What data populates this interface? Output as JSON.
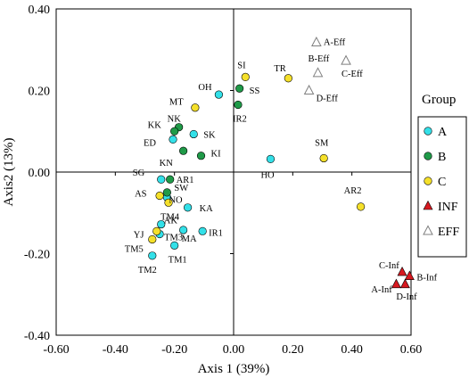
{
  "chart_data": {
    "type": "scatter",
    "xlabel": "Axis 1 (39%)",
    "ylabel": "Axis2 (13%)",
    "xlim": [
      -0.6,
      0.6
    ],
    "ylim": [
      -0.4,
      0.4
    ],
    "xticks": [
      -0.6,
      -0.4,
      -0.2,
      0.0,
      0.2,
      0.4,
      0.6
    ],
    "yticks": [
      -0.4,
      -0.2,
      0.0,
      0.2,
      0.4
    ],
    "xtick_labels": [
      "-0.60",
      "-0.40",
      "-0.20",
      "0.00",
      "0.20",
      "0.40",
      "0.60"
    ],
    "ytick_labels": [
      "-0.40",
      "-0.20",
      "0.00",
      "0.20",
      "0.40"
    ],
    "grid": false,
    "legend": {
      "title": "Group",
      "position": "right",
      "entries": [
        {
          "label": "A",
          "marker": "circle",
          "color": "#33e0e8"
        },
        {
          "label": "B",
          "marker": "circle",
          "color": "#1f9a48"
        },
        {
          "label": "C",
          "marker": "circle",
          "color": "#f5e02a"
        },
        {
          "label": "INF",
          "marker": "triangle-filled",
          "color": "#d71920"
        },
        {
          "label": "EFF",
          "marker": "triangle-open",
          "color": "#7f7f7f"
        }
      ]
    },
    "series": [
      {
        "group": "A",
        "marker": "circle",
        "color": "#33e0e8",
        "points": [
          {
            "label": "OH",
            "x": -0.05,
            "y": 0.19
          },
          {
            "label": "SK",
            "x": -0.135,
            "y": 0.093
          },
          {
            "label": "ED",
            "x": -0.205,
            "y": 0.08
          },
          {
            "label": "HO",
            "x": 0.125,
            "y": 0.032
          },
          {
            "label": "SG",
            "x": -0.245,
            "y": -0.018
          },
          {
            "label": "NO",
            "x": -0.225,
            "y": -0.062
          },
          {
            "label": "KA",
            "x": -0.155,
            "y": -0.087
          },
          {
            "label": "AK",
            "x": -0.245,
            "y": -0.128
          },
          {
            "label": "MA",
            "x": -0.17,
            "y": -0.142
          },
          {
            "label": "IR1",
            "x": -0.105,
            "y": -0.145
          },
          {
            "label": "TM3",
            "x": -0.25,
            "y": -0.152
          },
          {
            "label": "TM1",
            "x": -0.2,
            "y": -0.18
          },
          {
            "label": "TM2",
            "x": -0.275,
            "y": -0.205
          }
        ]
      },
      {
        "group": "B",
        "marker": "circle",
        "color": "#1f9a48",
        "points": [
          {
            "label": "SS",
            "x": 0.02,
            "y": 0.205
          },
          {
            "label": "IR2",
            "x": 0.015,
            "y": 0.165
          },
          {
            "label": "NK",
            "x": -0.185,
            "y": 0.11
          },
          {
            "label": "KK",
            "x": -0.2,
            "y": 0.1
          },
          {
            "label": "KN",
            "x": -0.17,
            "y": 0.052
          },
          {
            "label": "KI",
            "x": -0.11,
            "y": 0.04
          },
          {
            "label": "AR1",
            "x": -0.215,
            "y": -0.018
          },
          {
            "label": "SW",
            "x": -0.225,
            "y": -0.05
          }
        ]
      },
      {
        "group": "C",
        "marker": "circle",
        "color": "#f5e02a",
        "points": [
          {
            "label": "SI",
            "x": 0.04,
            "y": 0.233
          },
          {
            "label": "TR",
            "x": 0.185,
            "y": 0.23
          },
          {
            "label": "MT",
            "x": -0.13,
            "y": 0.158
          },
          {
            "label": "SM",
            "x": 0.305,
            "y": 0.034
          },
          {
            "label": "AR2",
            "x": 0.43,
            "y": -0.085
          },
          {
            "label": "AS",
            "x": -0.25,
            "y": -0.058
          },
          {
            "label": "TM4",
            "x": -0.22,
            "y": -0.075
          },
          {
            "label": "YJ",
            "x": -0.26,
            "y": -0.145
          },
          {
            "label": "TM5",
            "x": -0.275,
            "y": -0.165
          }
        ]
      },
      {
        "group": "INF",
        "marker": "triangle-filled",
        "color": "#d71920",
        "points": [
          {
            "label": "C-Inf",
            "x": 0.57,
            "y": -0.245
          },
          {
            "label": "B-Inf",
            "x": 0.595,
            "y": -0.255
          },
          {
            "label": "A-Inf",
            "x": 0.55,
            "y": -0.275
          },
          {
            "label": "D-Inf",
            "x": 0.58,
            "y": -0.275
          }
        ]
      },
      {
        "group": "EFF",
        "marker": "triangle-open",
        "color": "#7f7f7f",
        "points": [
          {
            "label": "A-Eff",
            "x": 0.28,
            "y": 0.318
          },
          {
            "label": "B-Eff",
            "x": 0.285,
            "y": 0.243
          },
          {
            "label": "C-Eff",
            "x": 0.38,
            "y": 0.273
          },
          {
            "label": "D-Eff",
            "x": 0.255,
            "y": 0.2
          }
        ]
      }
    ]
  }
}
